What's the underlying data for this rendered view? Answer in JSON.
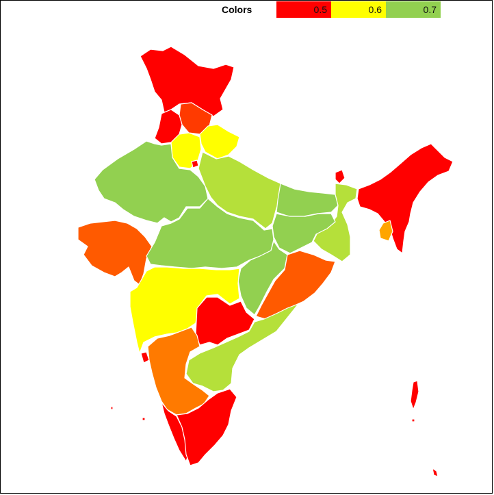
{
  "legend": {
    "title": "Colors",
    "items": [
      {
        "label": "0.5",
        "color": "#ff0000"
      },
      {
        "label": "0.6",
        "color": "#ffff00"
      },
      {
        "label": "0.7",
        "color": "#92d050"
      }
    ]
  },
  "scale_colors": {
    "red": "#ff0000",
    "red_orange": "#ff3a00",
    "orange_red": "#ff5a00",
    "orange": "#ff7a00",
    "amber": "#ffa500",
    "yellow": "#ffff00",
    "yellow_green": "#b5e03a",
    "green": "#92d050"
  },
  "regions": [
    {
      "id": "jammu-kashmir",
      "fill": "red"
    },
    {
      "id": "himachal",
      "fill": "red_orange"
    },
    {
      "id": "punjab",
      "fill": "red"
    },
    {
      "id": "haryana",
      "fill": "yellow"
    },
    {
      "id": "delhi",
      "fill": "red"
    },
    {
      "id": "uttarakhand",
      "fill": "yellow"
    },
    {
      "id": "rajasthan",
      "fill": "green"
    },
    {
      "id": "uttar-pradesh",
      "fill": "yellow_green"
    },
    {
      "id": "bihar",
      "fill": "green"
    },
    {
      "id": "sikkim",
      "fill": "red"
    },
    {
      "id": "west-bengal",
      "fill": "yellow_green"
    },
    {
      "id": "jharkhand",
      "fill": "green"
    },
    {
      "id": "gujarat",
      "fill": "orange_red"
    },
    {
      "id": "madhya-pradesh",
      "fill": "green"
    },
    {
      "id": "chhattisgarh",
      "fill": "green"
    },
    {
      "id": "odisha",
      "fill": "orange_red"
    },
    {
      "id": "maharashtra",
      "fill": "yellow"
    },
    {
      "id": "telangana",
      "fill": "red"
    },
    {
      "id": "andhra-pradesh",
      "fill": "yellow_green"
    },
    {
      "id": "goa",
      "fill": "red"
    },
    {
      "id": "karnataka",
      "fill": "orange"
    },
    {
      "id": "kerala",
      "fill": "red"
    },
    {
      "id": "tamil-nadu",
      "fill": "red"
    },
    {
      "id": "northeast",
      "fill": "red"
    },
    {
      "id": "tripura",
      "fill": "amber"
    },
    {
      "id": "andaman-nicobar",
      "fill": "red"
    },
    {
      "id": "lakshadweep",
      "fill": "red"
    }
  ]
}
